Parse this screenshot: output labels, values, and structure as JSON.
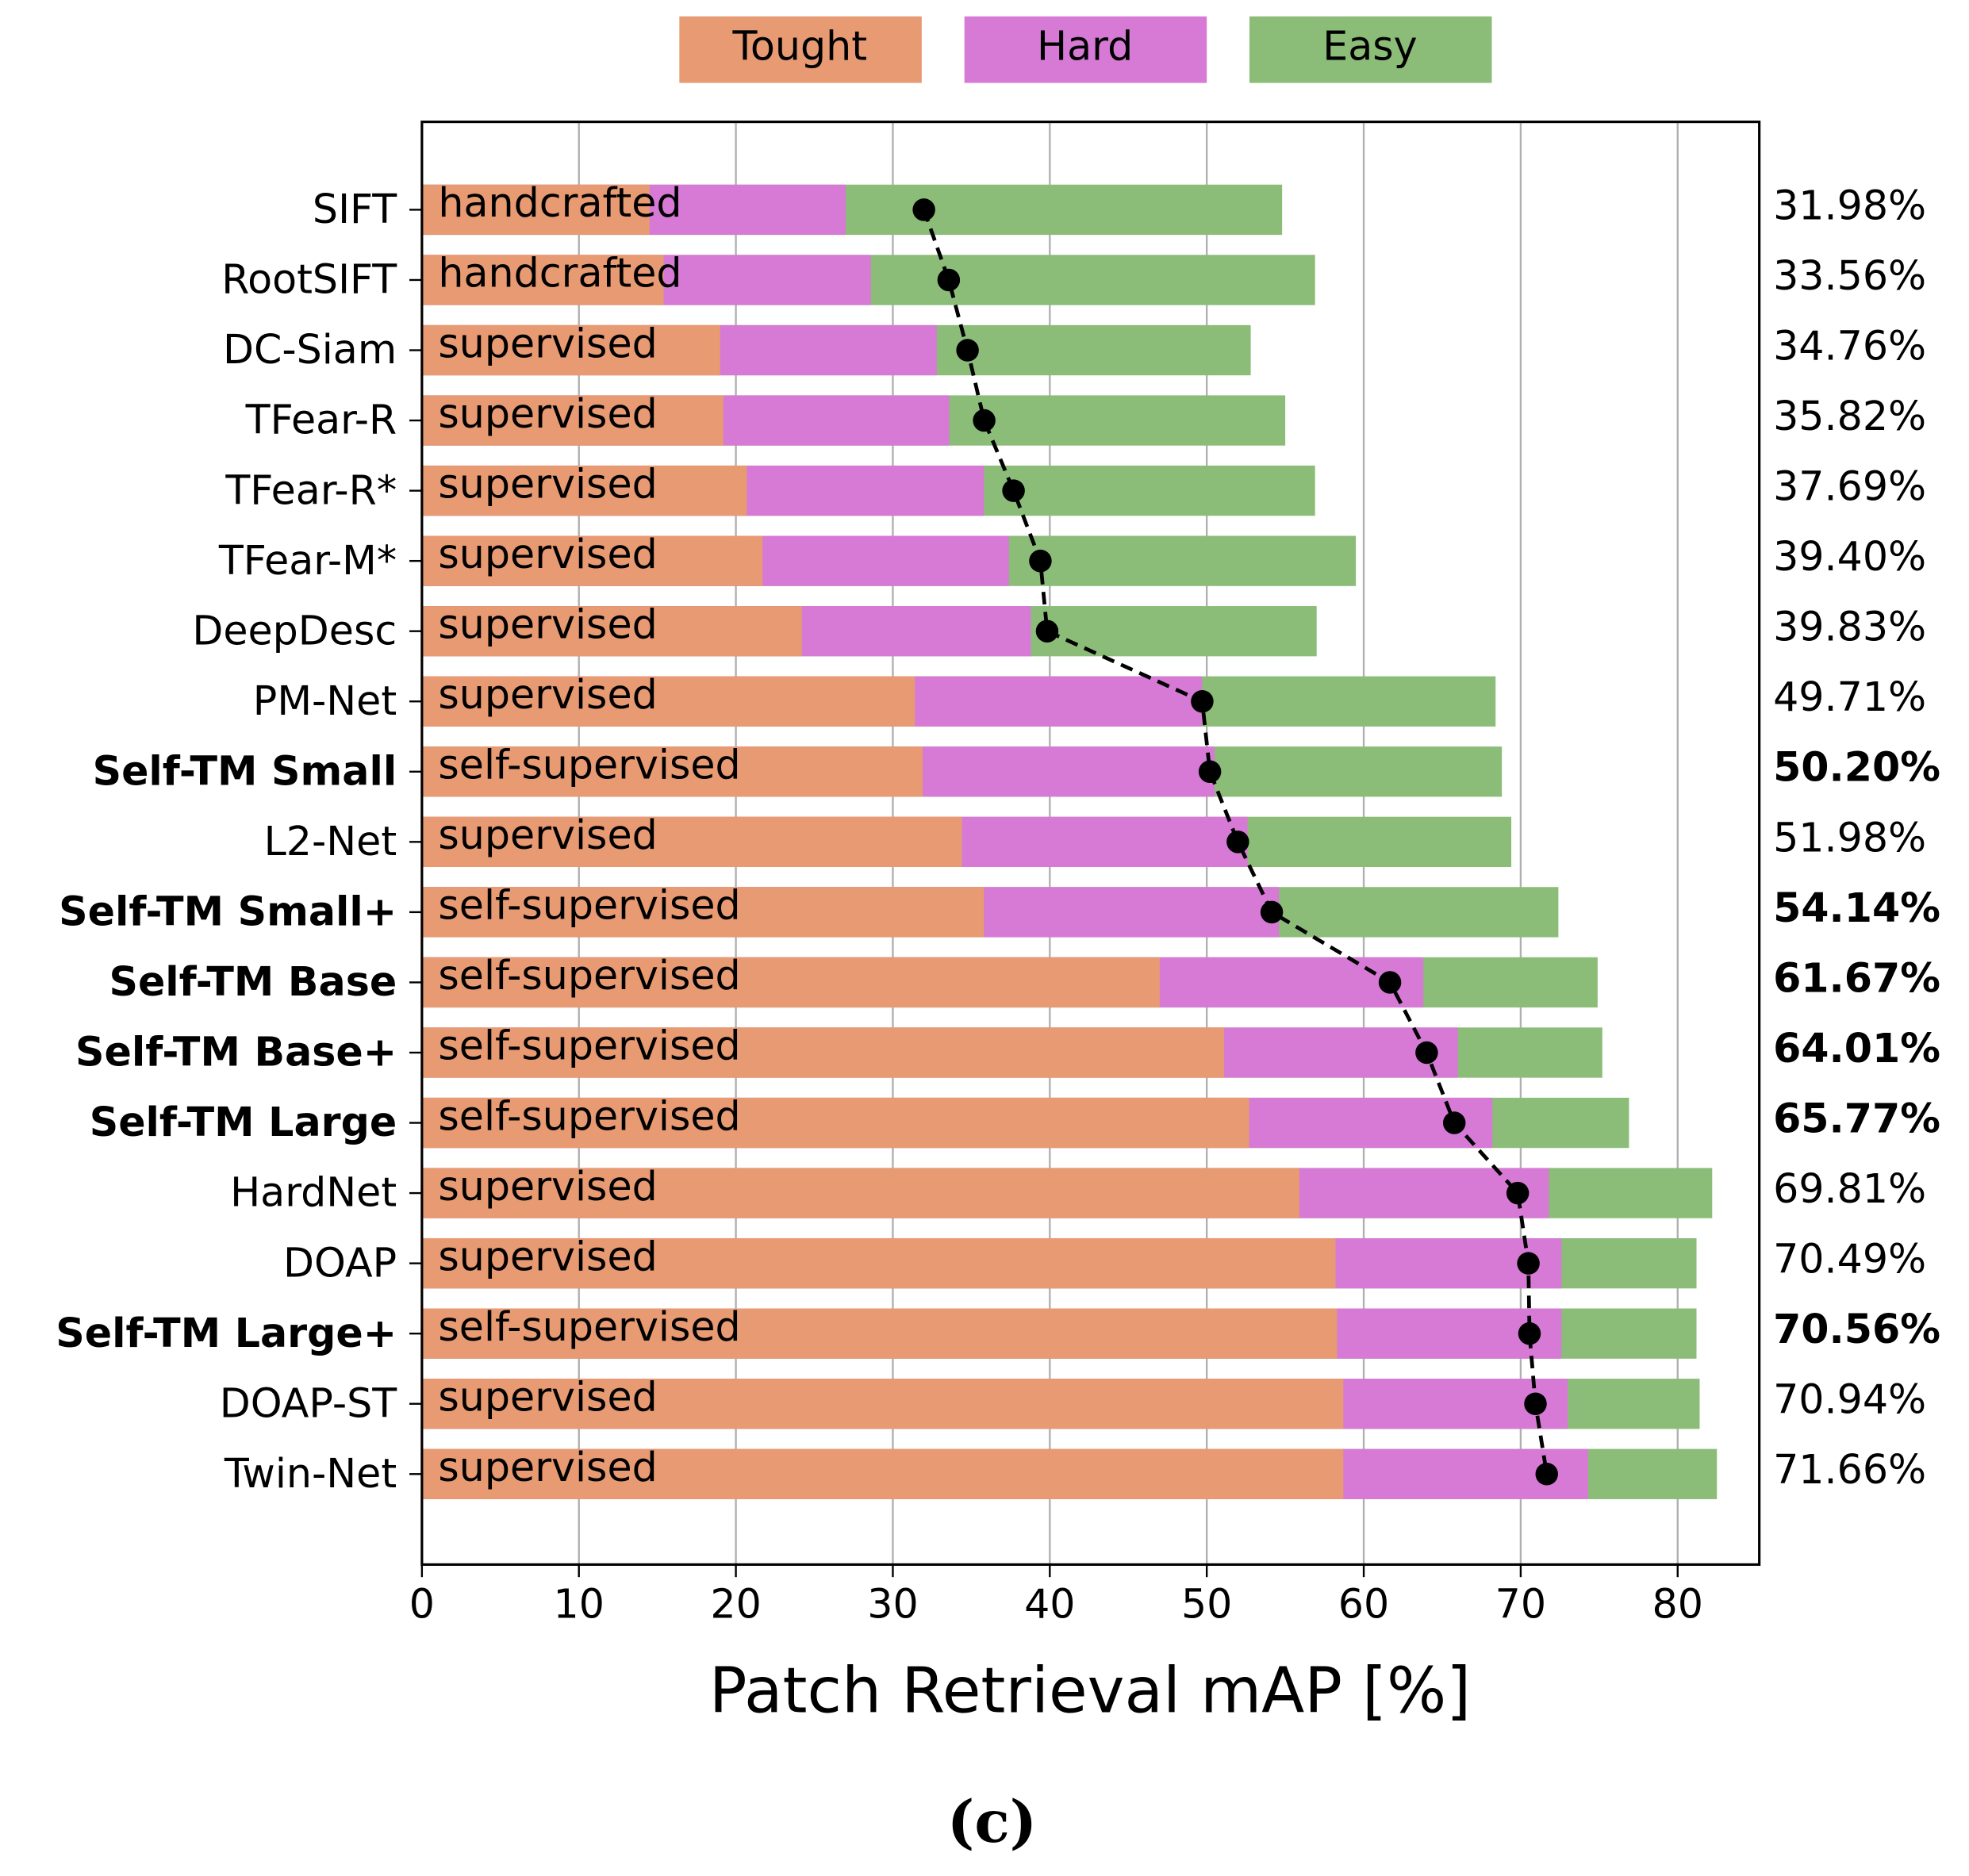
{
  "chart_data": {
    "type": "bar",
    "orientation": "horizontal",
    "xlabel": "Patch Retrieval mAP [%]",
    "caption": "(c)",
    "categories": [
      "SIFT",
      "RootSIFT",
      "DC-Siam",
      "TFear-R",
      "TFear-R*",
      "TFear-M*",
      "DeepDesc",
      "PM-Net",
      "Self-TM Small",
      "L2-Net",
      "Self-TM Small+",
      "Self-TM Base",
      "Self-TM Base+",
      "Self-TM Large",
      "HardNet",
      "DOAP",
      "Self-TM Large+",
      "DOAP-ST",
      "Twin-Net"
    ],
    "highlighted": [
      false,
      false,
      false,
      false,
      false,
      false,
      false,
      false,
      true,
      false,
      true,
      true,
      true,
      true,
      false,
      false,
      true,
      false,
      false
    ],
    "method_types": [
      "handcrafted",
      "handcrafted",
      "supervised",
      "supervised",
      "supervised",
      "supervised",
      "supervised",
      "supervised",
      "self-supervised",
      "supervised",
      "self-supervised",
      "self-supervised",
      "self-supervised",
      "self-supervised",
      "supervised",
      "supervised",
      "self-supervised",
      "supervised",
      "supervised"
    ],
    "series": [
      {
        "name": "Tought",
        "color": "#e89a72",
        "values": [
          14.5,
          15.4,
          19.0,
          19.2,
          20.7,
          21.7,
          24.2,
          31.4,
          31.9,
          34.4,
          35.8,
          47.0,
          51.1,
          52.7,
          55.9,
          58.2,
          58.3,
          58.7,
          58.7
        ]
      },
      {
        "name": "Hard",
        "color": "#d67ad6",
        "values": [
          27.0,
          28.6,
          32.8,
          33.6,
          35.8,
          37.4,
          38.8,
          49.7,
          50.5,
          52.6,
          54.6,
          63.8,
          66.0,
          68.2,
          71.8,
          72.6,
          72.6,
          73.0,
          74.3
        ]
      },
      {
        "name": "Easy",
        "color": "#8bbd78",
        "values": [
          54.8,
          56.9,
          52.8,
          55.0,
          56.9,
          59.5,
          57.0,
          68.4,
          68.8,
          69.4,
          72.4,
          74.9,
          75.2,
          76.9,
          82.2,
          81.2,
          81.2,
          81.4,
          82.5
        ]
      }
    ],
    "mean": {
      "color": "#000000",
      "values": [
        31.98,
        33.56,
        34.76,
        35.82,
        37.69,
        39.4,
        39.83,
        49.71,
        50.2,
        51.98,
        54.14,
        61.67,
        64.01,
        65.77,
        69.81,
        70.49,
        70.56,
        70.94,
        71.66
      ],
      "value_labels": [
        "31.98%",
        "33.56%",
        "34.76%",
        "35.82%",
        "37.69%",
        "39.40%",
        "39.83%",
        "49.71%",
        "50.20%",
        "51.98%",
        "54.14%",
        "61.67%",
        "64.01%",
        "65.77%",
        "69.81%",
        "70.49%",
        "70.56%",
        "70.94%",
        "71.66%"
      ]
    },
    "xlim": [
      0,
      85.2
    ],
    "xticks": [
      0,
      10,
      20,
      30,
      40,
      50,
      60,
      70,
      80
    ],
    "grid": true,
    "legend": "top"
  }
}
